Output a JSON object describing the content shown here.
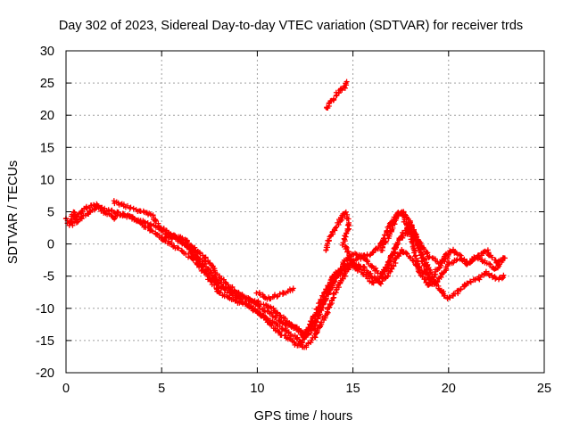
{
  "chart_data": {
    "type": "scatter",
    "title": "Day 302 of 2023, Sidereal Day-to-day VTEC variation (SDTVAR) for receiver trds",
    "xlabel": "GPS time / hours",
    "ylabel": "SDTVAR / TECUs",
    "xlim": [
      0,
      25
    ],
    "ylim": [
      -20,
      30
    ],
    "xticks": [
      0,
      5,
      10,
      15,
      20,
      25
    ],
    "yticks": [
      -20,
      -15,
      -10,
      -5,
      0,
      5,
      10,
      15,
      20,
      25,
      30
    ],
    "grid": true,
    "legend": "none",
    "marker": "+",
    "series": [
      {
        "name": "track-a",
        "color": "#ff0000",
        "x": [
          0.0,
          0.2,
          0.4,
          0.6,
          0.8,
          1.0,
          1.3,
          1.6,
          2.0,
          2.5,
          3.0,
          3.5,
          4.0,
          4.5,
          5.0,
          5.5,
          6.0,
          6.5,
          7.0,
          7.5,
          8.0,
          8.5,
          9.0,
          9.5,
          10.0,
          10.5,
          11.0,
          11.5,
          12.0,
          12.3,
          12.6,
          13.0,
          13.5,
          14.0,
          14.5,
          15.0,
          15.5,
          16.0,
          16.5,
          17.0,
          17.5,
          18.0,
          18.5,
          19.0,
          19.5,
          20.0,
          20.5,
          21.0,
          21.5,
          22.0,
          22.5,
          22.9
        ],
        "y": [
          4,
          3,
          5,
          3.5,
          4,
          4.5,
          5,
          6,
          5.5,
          5,
          4.5,
          4,
          3.5,
          3,
          2.5,
          1.5,
          0.5,
          -1,
          -3,
          -5,
          -6.5,
          -7.5,
          -8.5,
          -9.5,
          -10.5,
          -11.5,
          -12.5,
          -13.5,
          -14.5,
          -15.5,
          -14,
          -11,
          -7.5,
          -5,
          -3.5,
          -2.5,
          -2,
          -1.5,
          0,
          3.5,
          5,
          1.5,
          -4.5,
          -6.5,
          -5.5,
          -3,
          -2.5,
          -3,
          -2,
          -3,
          -4,
          -2
        ]
      },
      {
        "name": "track-b",
        "color": "#ff0000",
        "x": [
          0.3,
          0.6,
          1.0,
          1.5,
          2.0,
          2.5,
          3.0,
          3.5,
          4.0,
          4.5,
          5.0,
          5.5,
          6.0,
          6.5,
          7.0,
          7.5,
          8.0,
          8.5,
          9.0,
          9.5,
          10.0,
          10.5,
          11.0,
          11.5,
          12.0,
          12.5,
          13.0,
          13.5,
          14.0,
          14.5,
          15.0,
          15.5,
          16.0,
          16.5,
          17.0,
          17.5,
          18.0,
          18.5,
          19.0,
          19.5,
          20.0,
          20.5,
          21.0,
          21.5,
          22.0,
          22.5,
          22.9
        ],
        "y": [
          3,
          4.5,
          5.5,
          6,
          5,
          4,
          4.5,
          4,
          3,
          2,
          1,
          0,
          -1,
          -2,
          -3.5,
          -5.5,
          -7.5,
          -8.5,
          -9,
          -9.5,
          -10.5,
          -12,
          -13.5,
          -14.5,
          -15.5,
          -16,
          -14.5,
          -11.5,
          -8,
          -5,
          -3,
          -4.5,
          -6,
          -5,
          -2,
          1,
          2,
          -1,
          -4,
          -7,
          -8.5,
          -7.5,
          -6,
          -5.5,
          -4.5,
          -5.5,
          -5
        ]
      },
      {
        "name": "track-c",
        "color": "#ff0000",
        "x": [
          2.5,
          3.0,
          3.5,
          4.0,
          4.5,
          5.0,
          5.5,
          6.0,
          6.5,
          7.0,
          7.5,
          8.0,
          8.5,
          9.0,
          9.5,
          10.0,
          10.5,
          11.0,
          11.5,
          12.0,
          12.5,
          13.0,
          13.5,
          14.0,
          14.5,
          15.0,
          15.5,
          16.0,
          16.5,
          17.0,
          17.5,
          18.0,
          18.5,
          19.0
        ],
        "y": [
          6.5,
          6,
          5.5,
          5,
          4.5,
          2,
          1,
          0.5,
          -0.5,
          -2.5,
          -4,
          -6,
          -7,
          -8,
          -8.5,
          -9,
          -9.5,
          -10.5,
          -12,
          -13,
          -14,
          -12,
          -8.5,
          -5.5,
          -4,
          -3,
          -3.5,
          -5,
          -6,
          -4,
          -1,
          -2,
          -4,
          -5
        ]
      },
      {
        "name": "track-d",
        "color": "#ff0000",
        "x": [
          5.0,
          5.5,
          6.0,
          6.5,
          7.0,
          7.5,
          8.0,
          8.5,
          9.0,
          9.5,
          10.0,
          10.5,
          11.0,
          11.5,
          12.0,
          12.5,
          13.0,
          13.5,
          14.0,
          14.5,
          15.0,
          15.5,
          16.0,
          16.5,
          17.0,
          17.5,
          18.0,
          18.5,
          19.0,
          19.5,
          20.0
        ],
        "y": [
          0.5,
          1.5,
          1,
          0,
          -1.5,
          -3,
          -5,
          -6.5,
          -7.5,
          -8.5,
          -9.5,
          -10.5,
          -11.5,
          -12.5,
          -13,
          -14.5,
          -13,
          -9,
          -6,
          -3,
          -1.5,
          -2,
          -3.5,
          -5,
          -2,
          1,
          3,
          0,
          -2,
          -3,
          -2
        ]
      },
      {
        "name": "track-e",
        "color": "#ff0000",
        "x": [
          13.6,
          13.8,
          14.0,
          14.2,
          14.4,
          14.6,
          14.8,
          14.5,
          14.9,
          15.0,
          15.2
        ],
        "y": [
          -1,
          1,
          2,
          3,
          4,
          5,
          3,
          0,
          -2,
          -3,
          -4
        ]
      },
      {
        "name": "track-f",
        "color": "#ff0000",
        "x": [
          16.5,
          17.0,
          17.3,
          17.6,
          17.9,
          18.2,
          18.5,
          18.8,
          19.0,
          19.4,
          19.8,
          20.2,
          20.6,
          21.0,
          21.5,
          22.0,
          22.5,
          22.9
        ],
        "y": [
          -1,
          2,
          4.5,
          5,
          4,
          2,
          -1,
          -4,
          -6,
          -4,
          -2,
          -1,
          -2,
          -3,
          -2,
          -1,
          -3,
          -2
        ]
      },
      {
        "name": "track-g",
        "color": "#ff0000",
        "x": [
          13.6,
          13.8,
          14.0,
          14.2,
          14.4,
          14.6,
          14.7
        ],
        "y": [
          21,
          22,
          22.5,
          23.5,
          24,
          24.5,
          25
        ]
      },
      {
        "name": "track-h",
        "color": "#ff0000",
        "x": [
          10.0,
          10.5,
          11.0,
          11.5,
          11.9
        ],
        "y": [
          -7.5,
          -8.5,
          -8,
          -7.5,
          -7
        ]
      }
    ]
  }
}
